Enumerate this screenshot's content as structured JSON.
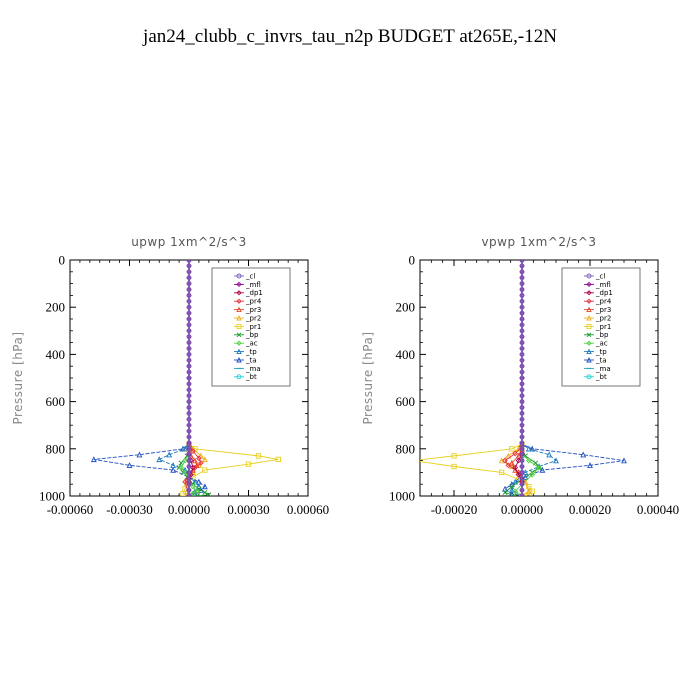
{
  "figure": {
    "title": "jan24_clubb_c_invrs_tau_n2p  BUDGET at265E,-12N"
  },
  "legend_entries": [
    {
      "name": "_cl",
      "color": "#7a5fb8",
      "marker": "circle"
    },
    {
      "name": "_mfl",
      "color": "#8b008b",
      "marker": "diamond"
    },
    {
      "name": "_dp1",
      "color": "#b0004a",
      "marker": "diamond"
    },
    {
      "name": "_pr4",
      "color": "#e8303a",
      "marker": "diamond"
    },
    {
      "name": "_pr3",
      "color": "#e84a2a",
      "marker": "triangle"
    },
    {
      "name": "_pr2",
      "color": "#f0b020",
      "marker": "triangle"
    },
    {
      "name": "_pr1",
      "color": "#e8d020",
      "marker": "square"
    },
    {
      "name": "_bp",
      "color": "#1a9a30",
      "marker": "x"
    },
    {
      "name": "_ac",
      "color": "#50d040",
      "marker": "diamond"
    },
    {
      "name": "_tp",
      "color": "#1a7ac0",
      "marker": "triangle"
    },
    {
      "name": "_ta",
      "color": "#2050c0",
      "marker": "triangle"
    },
    {
      "name": "_ma",
      "color": "#20a0c0",
      "marker": "dash"
    },
    {
      "name": "_bt",
      "color": "#20d0d0",
      "marker": "circle"
    }
  ],
  "chart_data": [
    {
      "type": "line",
      "title": "upwp   1xm^2/s^3",
      "ylabel": "Pressure [hPa]",
      "xlim": [
        -0.0006,
        0.0006
      ],
      "ylim": [
        1000,
        0
      ],
      "xticks": [
        "-0.00060",
        "-0.00030",
        "0.00000",
        "0.00030",
        "0.00060"
      ],
      "yticks": [
        "0",
        "200",
        "400",
        "600",
        "800",
        "1000"
      ],
      "legend_position": "top-right",
      "series": [
        {
          "name": "_pr1",
          "x": [
            0,
            0,
            3e-05,
            0.00035,
            0.00045,
            0.0003,
            8e-05,
            2e-05,
            -1e-05,
            -2e-05,
            -3e-05,
            0
          ],
          "y": [
            0,
            780,
            800,
            830,
            845,
            865,
            890,
            920,
            950,
            970,
            990,
            1000
          ]
        },
        {
          "name": "_pr2",
          "x": [
            0,
            0,
            2e-05,
            6e-05,
            8e-05,
            5e-05,
            2e-05,
            0,
            -1e-05,
            0
          ],
          "y": [
            0,
            780,
            800,
            830,
            845,
            870,
            900,
            940,
            980,
            1000
          ]
        },
        {
          "name": "_ta",
          "x": [
            0,
            0,
            -3e-05,
            -0.00025,
            -0.00048,
            -0.0003,
            -8e-05,
            0,
            5e-05,
            8e-05,
            6e-05,
            3e-05,
            0
          ],
          "y": [
            0,
            780,
            800,
            825,
            845,
            870,
            890,
            920,
            940,
            960,
            975,
            990,
            1000
          ]
        },
        {
          "name": "_tp",
          "x": [
            0,
            0,
            -2e-05,
            -0.0001,
            -0.00015,
            -8e-05,
            -2e-05,
            0,
            3e-05,
            5e-05,
            3e-05,
            0
          ],
          "y": [
            0,
            780,
            800,
            825,
            845,
            870,
            890,
            920,
            940,
            960,
            980,
            1000
          ]
        },
        {
          "name": "_bp",
          "x": [
            0,
            0,
            -1e-05,
            -4e-05,
            -5e-05,
            -3e-05,
            -1e-05,
            2e-05,
            5e-05,
            8e-05,
            0.0001,
            4e-05
          ],
          "y": [
            0,
            800,
            830,
            860,
            880,
            900,
            920,
            950,
            970,
            985,
            995,
            1000
          ]
        },
        {
          "name": "_ac",
          "x": [
            0,
            0,
            -2e-05,
            -4e-05,
            -2e-05,
            0,
            2e-05,
            4e-05,
            2e-05,
            0
          ],
          "y": [
            0,
            820,
            850,
            880,
            900,
            930,
            960,
            980,
            990,
            1000
          ]
        },
        {
          "name": "_pr4",
          "x": [
            0,
            0,
            2e-05,
            5e-05,
            6e-05,
            3e-05,
            0,
            -2e-05,
            0
          ],
          "y": [
            0,
            780,
            810,
            840,
            860,
            880,
            900,
            940,
            1000
          ]
        },
        {
          "name": "_pr3",
          "x": [
            0,
            0,
            1e-05,
            3e-05,
            4e-05,
            2e-05,
            0,
            0
          ],
          "y": [
            0,
            800,
            830,
            850,
            870,
            890,
            920,
            1000
          ]
        },
        {
          "name": "_dp1",
          "x": [
            0,
            0,
            1e-05,
            2e-05,
            1e-05,
            0,
            0
          ],
          "y": [
            0,
            820,
            850,
            880,
            910,
            940,
            1000
          ]
        },
        {
          "name": "_mfl",
          "x": [
            0,
            0,
            0
          ],
          "y": [
            0,
            500,
            1000
          ]
        },
        {
          "name": "_cl",
          "x": [
            0,
            0
          ],
          "y": [
            0,
            1000
          ]
        }
      ]
    },
    {
      "type": "line",
      "title": "vpwp   1xm^2/s^3",
      "ylabel": "Pressure [hPa]",
      "xlim": [
        -0.0003,
        0.0004
      ],
      "ylim": [
        1000,
        0
      ],
      "xticks": [
        "-0.00020",
        "0.00000",
        "0.00020",
        "0.00040"
      ],
      "yticks": [
        "0",
        "200",
        "400",
        "600",
        "800",
        "1000"
      ],
      "legend_position": "top-right",
      "series": [
        {
          "name": "_pr1",
          "x": [
            0,
            0,
            -3e-05,
            -0.0002,
            -0.00032,
            -0.0002,
            -6e-05,
            -1e-05,
            2e-05,
            3e-05,
            2e-05,
            0
          ],
          "y": [
            0,
            780,
            800,
            830,
            850,
            875,
            900,
            930,
            960,
            980,
            995,
            1000
          ]
        },
        {
          "name": "_pr2",
          "x": [
            0,
            0,
            -1e-05,
            -4e-05,
            -6e-05,
            -3e-05,
            -1e-05,
            1e-05,
            2e-05,
            0
          ],
          "y": [
            0,
            780,
            800,
            830,
            850,
            875,
            900,
            940,
            980,
            1000
          ]
        },
        {
          "name": "_ta",
          "x": [
            0,
            0,
            3e-05,
            0.00018,
            0.0003,
            0.0002,
            6e-05,
            1e-05,
            -3e-05,
            -5e-05,
            -3e-05,
            0
          ],
          "y": [
            0,
            780,
            800,
            825,
            850,
            870,
            890,
            920,
            950,
            970,
            990,
            1000
          ]
        },
        {
          "name": "_tp",
          "x": [
            0,
            0,
            2e-05,
            8e-05,
            0.0001,
            5e-05,
            1e-05,
            -2e-05,
            -3e-05,
            0
          ],
          "y": [
            0,
            780,
            800,
            825,
            850,
            875,
            900,
            940,
            975,
            1000
          ]
        },
        {
          "name": "_bp",
          "x": [
            0,
            0,
            1e-05,
            4e-05,
            5e-05,
            3e-05,
            0,
            -3e-05,
            -5e-05,
            -2e-05
          ],
          "y": [
            0,
            800,
            830,
            860,
            880,
            900,
            930,
            960,
            985,
            1000
          ]
        },
        {
          "name": "_ac",
          "x": [
            0,
            0,
            2e-05,
            5e-05,
            3e-05,
            0,
            -2e-05,
            0
          ],
          "y": [
            0,
            820,
            850,
            880,
            910,
            950,
            980,
            1000
          ]
        },
        {
          "name": "_pr4",
          "x": [
            0,
            0,
            -2e-05,
            -5e-05,
            -4e-05,
            -1e-05,
            0,
            0
          ],
          "y": [
            0,
            790,
            820,
            850,
            870,
            900,
            940,
            1000
          ]
        },
        {
          "name": "_pr3",
          "x": [
            0,
            0,
            -1e-05,
            -3e-05,
            -2e-05,
            0,
            0
          ],
          "y": [
            0,
            800,
            830,
            860,
            890,
            930,
            1000
          ]
        },
        {
          "name": "_dp1",
          "x": [
            0,
            0,
            -1e-05,
            -2e-05,
            -1e-05,
            0,
            0
          ],
          "y": [
            0,
            820,
            850,
            880,
            910,
            940,
            1000
          ]
        },
        {
          "name": "_mfl",
          "x": [
            0,
            0,
            0
          ],
          "y": [
            0,
            500,
            1000
          ]
        },
        {
          "name": "_cl",
          "x": [
            0,
            0
          ],
          "y": [
            0,
            1000
          ]
        }
      ]
    }
  ]
}
